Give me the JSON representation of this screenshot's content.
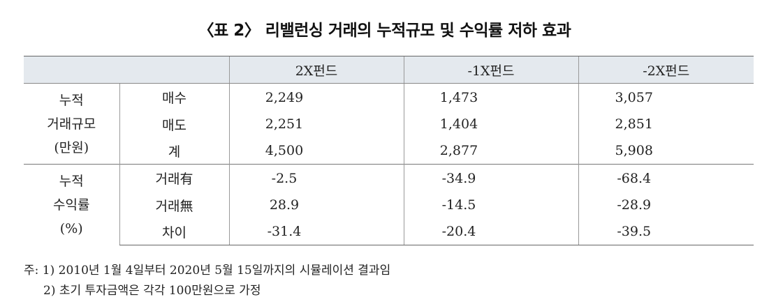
{
  "title": "〈표 2〉 리밸런싱 거래의 누적규모 및 수익률 저하 효과",
  "table": {
    "columns": [
      "2X펀드",
      "-1X펀드",
      "-2X펀드"
    ],
    "groups": [
      {
        "label_lines": [
          "누적",
          "거래규모",
          "(만원)"
        ],
        "rows": [
          {
            "label": "매수",
            "values": [
              "2,249",
              "1,473",
              "3,057"
            ]
          },
          {
            "label": "매도",
            "values": [
              "2,251",
              "1,404",
              "2,851"
            ]
          },
          {
            "label": "계",
            "values": [
              "4,500",
              "2,877",
              "5,908"
            ]
          }
        ]
      },
      {
        "label_lines": [
          "누적",
          "수익률",
          "(%)"
        ],
        "rows": [
          {
            "label": "거래有",
            "values": [
              "-2.5",
              "-34.9",
              "-68.4"
            ]
          },
          {
            "label": "거래無",
            "values": [
              "28.9",
              "-14.5",
              "-28.9"
            ]
          },
          {
            "label": "차이",
            "values": [
              "-31.4",
              "-20.4",
              "-39.5"
            ]
          }
        ]
      }
    ]
  },
  "notes": [
    "주: 1) 2010년 1월 4일부터 2020년 5월 15일까지의 시뮬레이션 결과임",
    "2) 초기 투자금액은 각각 100만원으로 가정"
  ]
}
